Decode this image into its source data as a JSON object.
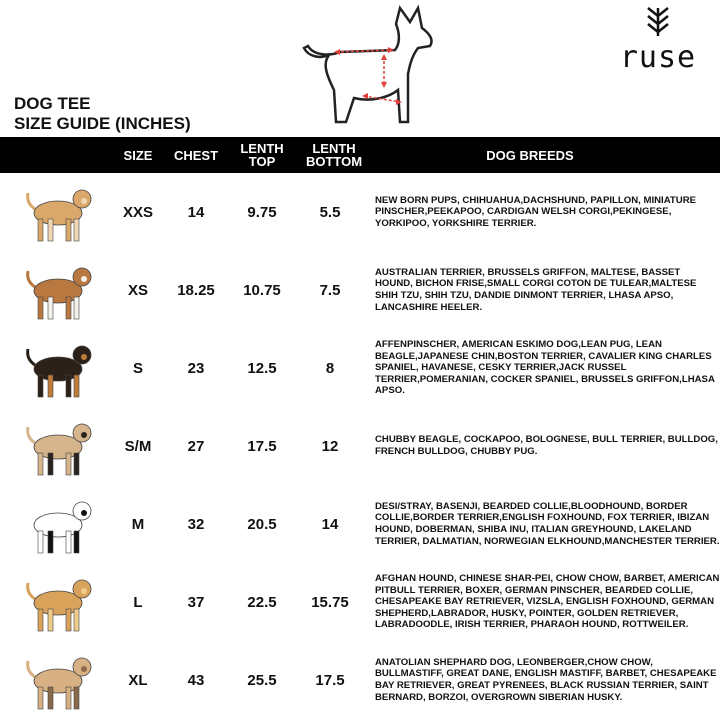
{
  "title": {
    "line1": "DOG TEE",
    "line2": "SIZE GUIDE (INCHES)"
  },
  "logo": {
    "text": "ruse",
    "icon": "chevron-stack-icon"
  },
  "colors": {
    "header_bg": "#000000",
    "arrow": "#e0403a"
  },
  "headers": {
    "size": "SIZE",
    "chest": "CHEST",
    "length_top": "LENTH TOP",
    "length_bottom": "LENTH BOTTOM",
    "breeds": "DOG BREEDS"
  },
  "rows": [
    {
      "size": "XXS",
      "chest": "14",
      "top": "9.75",
      "bottom": "5.5",
      "dog": "chihuahua",
      "breeds": "NEW BORN PUPS, CHIHUAHUA,DACHSHUND, PAPILLON, MINIATURE PINSCHER,PEEKAPOO, CARDIGAN WELSH CORGI,PEKINGESE, YORKIPOO, YORKSHIRE TERRIER."
    },
    {
      "size": "XS",
      "chest": "18.25",
      "top": "10.75",
      "bottom": "7.5",
      "dog": "shih-tzu",
      "breeds": "AUSTRALIAN TERRIER, BRUSSELS GRIFFON, MALTESE, BASSET HOUND, BICHON FRISE,SMALL CORGI COTON DE TULEAR,MALTESE SHIH TZU, SHIH TZU, DANDIE DINMONT TERRIER, LHASA APSO, LANCASHIRE HEELER."
    },
    {
      "size": "S",
      "chest": "23",
      "top": "12.5",
      "bottom": "8",
      "dog": "beagle",
      "breeds": "AFFENPINSCHER, AMERICAN ESKIMO DOG,LEAN PUG, LEAN BEAGLE,JAPANESE CHIN,BOSTON TERRIER, CAVALIER KING CHARLES SPANIEL, HAVANESE, CESKY TERRIER,JACK RUSSEL TERRIER,POMERANIAN, COCKER SPANIEL, BRUSSELS GRIFFON,LHASA APSO."
    },
    {
      "size": "S/M",
      "chest": "27",
      "top": "17.5",
      "bottom": "12",
      "dog": "pug",
      "breeds": "CHUBBY BEAGLE, COCKAPOO, BOLOGNESE, BULL TERRIER, BULLDOG, FRENCH BULLDOG, CHUBBY PUG."
    },
    {
      "size": "M",
      "chest": "32",
      "top": "20.5",
      "bottom": "14",
      "dog": "dalmatian",
      "breeds": "DESI/STRAY, BASENJI, BEARDED COLLIE,BLOODHOUND, BORDER COLLIE,BORDER TERRIER,ENGLISH FOXHOUND, FOX TERRIER, IBIZAN HOUND, DOBERMAN, SHIBA INU, ITALIAN GREYHOUND, LAKELAND TERRIER, DALMATIAN, NORWEGIAN ELKHOUND,MANCHESTER TERRIER."
    },
    {
      "size": "L",
      "chest": "37",
      "top": "22.5",
      "bottom": "15.75",
      "dog": "golden-retriever",
      "breeds": "AFGHAN HOUND, CHINESE SHAR-PEI, CHOW CHOW, BARBET, AMERICAN PITBULL TERRIER, BOXER, GERMAN PINSCHER, BEARDED COLLIE, CHESAPEAKE BAY RETRIEVER, VIZSLA, ENGLISH FOXHOUND, GERMAN SHEPHERD,LABRADOR, HUSKY, POINTER, GOLDEN RETRIEVER, LABRADOODLE, IRISH TERRIER, PHARAOH HOUND, ROTTWEILER."
    },
    {
      "size": "XL",
      "chest": "43",
      "top": "25.5",
      "bottom": "17.5",
      "dog": "great-dane",
      "breeds": "ANATOLIAN SHEPHARD DOG, LEONBERGER,CHOW CHOW, BULLMASTIFF, GREAT DANE, ENGLISH MASTIFF, BARBET, CHESAPEAKE BAY RETRIEVER, GREAT PYRENEES, BLACK RUSSIAN TERRIER, SAINT BERNARD, BORZOI, OVERGROWN SIBERIAN HUSKY."
    }
  ]
}
